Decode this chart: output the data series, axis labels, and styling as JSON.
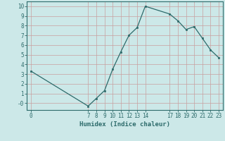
{
  "x": [
    0,
    7,
    8,
    9,
    10,
    11,
    12,
    13,
    14,
    17,
    18,
    19,
    20,
    21,
    22,
    23
  ],
  "y": [
    3.3,
    -0.3,
    0.5,
    1.3,
    3.5,
    5.3,
    7.0,
    7.8,
    10.0,
    9.2,
    8.5,
    7.6,
    7.9,
    6.7,
    5.5,
    4.7
  ],
  "xlabel": "Humidex (Indice chaleur)",
  "xticks": [
    0,
    7,
    8,
    9,
    10,
    11,
    12,
    13,
    14,
    17,
    18,
    19,
    20,
    21,
    22,
    23
  ],
  "yticks": [
    0,
    1,
    2,
    3,
    4,
    5,
    6,
    7,
    8,
    9,
    10
  ],
  "ytick_labels": [
    "-0",
    "1",
    "2",
    "3",
    "4",
    "5",
    "6",
    "7",
    "8",
    "9",
    "10"
  ],
  "ylim": [
    -0.7,
    10.5
  ],
  "xlim": [
    -0.5,
    23.5
  ],
  "line_color": "#2d6b6b",
  "marker_color": "#2d6b6b",
  "bg_color": "#cce8e8",
  "grid_color_v": "#c8a0a0",
  "grid_color_h": "#c8a0a0",
  "spine_color": "#2d6b6b",
  "tick_fontsize": 5.5,
  "xlabel_fontsize": 6.5
}
